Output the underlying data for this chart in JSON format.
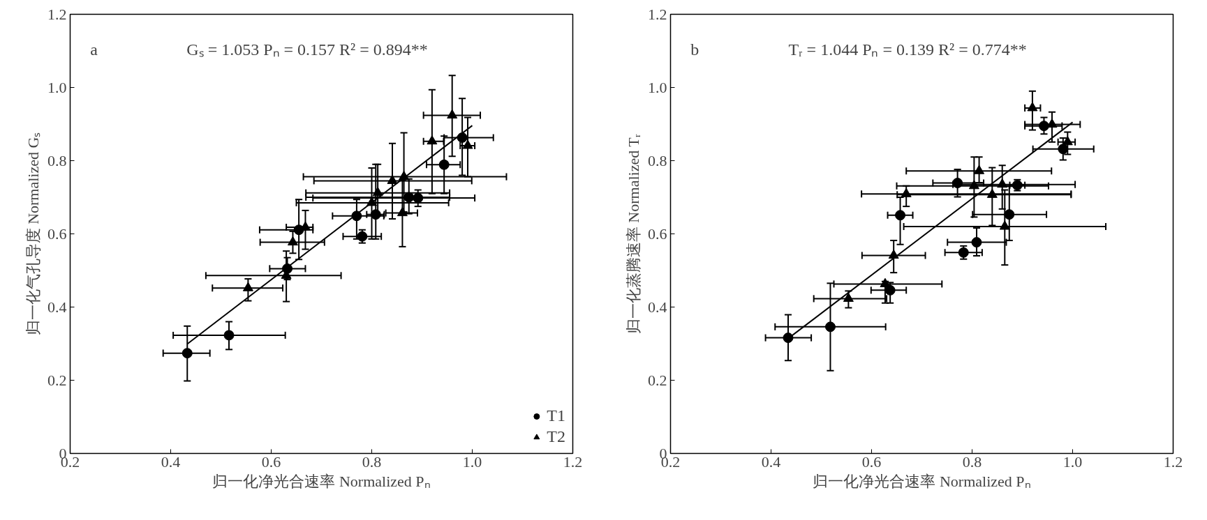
{
  "chart_data": [
    {
      "type": "scatter",
      "annotations": [
        "a",
        "Gₛ = 1.053  Pₙ = 0.157  R² = 0.894**"
      ],
      "xlabel": "归一化净光合速率 Normalized Pₙ",
      "ylabel": "归一化气孔导度 Normalized Gₛ",
      "xlim": [
        0.2,
        1.2
      ],
      "ylim": [
        0,
        1.2
      ],
      "xticks": [
        0.2,
        0.4,
        0.6,
        0.8,
        {
          "value": 1,
          "label": "1.0"
        },
        1.2
      ],
      "yticks": [
        0,
        0.2,
        0.4,
        0.6,
        0.8,
        {
          "value": 1,
          "label": "1.0"
        },
        1.2
      ],
      "grid": false,
      "legend": "bottom right",
      "series": [
        {
          "name": "T1",
          "color": "#000000",
          "marker": "circle",
          "x": [
            0.433,
            0.516,
            0.632,
            0.655,
            0.77,
            0.781,
            0.808,
            0.874,
            0.892,
            0.944,
            0.98
          ],
          "values": [
            0.274,
            0.323,
            0.505,
            0.611,
            0.649,
            0.593,
            0.653,
            0.7,
            0.698,
            0.789,
            0.863
          ],
          "xerrors": [
            [
              0.385,
              0.478
            ],
            [
              0.405,
              0.628
            ],
            [
              0.597,
              0.668
            ],
            [
              0.577,
              0.683
            ],
            [
              0.722,
              0.824
            ],
            [
              0.743,
              0.819
            ],
            [
              0.79,
              0.825
            ],
            [
              0.669,
              0.955
            ],
            [
              0.683,
              1.005
            ],
            [
              0.909,
              0.976
            ],
            [
              0.944,
              1.042
            ]
          ],
          "errors": [
            [
              0.198,
              0.348
            ],
            [
              0.284,
              0.36
            ],
            [
              0.475,
              0.535
            ],
            [
              0.53,
              0.694
            ],
            [
              0.586,
              0.694
            ],
            [
              0.575,
              0.611
            ],
            [
              0.586,
              0.79
            ],
            [
              0.655,
              0.75
            ],
            [
              0.675,
              0.72
            ],
            [
              0.71,
              0.867
            ],
            [
              0.76,
              0.97
            ]
          ]
        },
        {
          "name": "T2",
          "color": "#000000",
          "marker": "triangle",
          "x": [
            0.554,
            0.63,
            0.643,
            0.668,
            0.8,
            0.812,
            0.841,
            0.864,
            0.861,
            0.92,
            0.96,
            0.991
          ],
          "values": [
            0.452,
            0.486,
            0.577,
            0.618,
            0.685,
            0.712,
            0.745,
            0.756,
            0.657,
            0.853,
            0.924,
            0.841
          ],
          "xerrors": [
            [
              0.483,
              0.623
            ],
            [
              0.47,
              0.739
            ],
            [
              0.578,
              0.706
            ],
            [
              0.63,
              0.683
            ],
            [
              0.65,
              0.953
            ],
            [
              0.669,
              0.955
            ],
            [
              0.685,
              0.999
            ],
            [
              0.664,
              1.068
            ],
            [
              0.828,
              0.891
            ],
            [
              0.903,
              0.943
            ],
            [
              0.903,
              1.016
            ],
            [
              0.976,
              1.005
            ]
          ],
          "errors": [
            [
              0.417,
              0.477
            ],
            [
              0.415,
              0.553
            ],
            [
              0.547,
              0.607
            ],
            [
              0.558,
              0.664
            ],
            [
              0.586,
              0.78
            ],
            [
              0.65,
              0.79
            ],
            [
              0.641,
              0.847
            ],
            [
              0.66,
              0.876
            ],
            [
              0.565,
              0.747
            ],
            [
              0.71,
              0.994
            ],
            [
              0.812,
              1.033
            ],
            [
              0.756,
              0.918
            ]
          ]
        },
        {
          "type": "line",
          "color": "#000000",
          "x": [
            0.433,
            1.0
          ],
          "values": [
            0.299,
            0.896
          ]
        }
      ]
    },
    {
      "type": "scatter",
      "annotations": [
        "b",
        "Tᵣ = 1.044  Pₙ = 0.139  R² = 0.774**"
      ],
      "xlabel": "归一化净光合速率 Normalized Pₙ",
      "ylabel": "归一化蒸腾速率 Normalized Tᵣ",
      "xlim": [
        0.2,
        1.2
      ],
      "ylim": [
        0,
        1.2
      ],
      "xticks": [
        0.2,
        0.4,
        0.6,
        0.8,
        {
          "value": 1,
          "label": "1.0"
        },
        1.2
      ],
      "yticks": [
        0,
        0.2,
        0.4,
        0.6,
        0.8,
        {
          "value": 1,
          "label": "1.0"
        },
        1.2
      ],
      "grid": false,
      "series": [
        {
          "color": "#000000",
          "marker": "circle",
          "x": [
            0.434,
            0.518,
            0.637,
            0.657,
            0.783,
            0.809,
            0.771,
            0.874,
            0.89,
            0.943,
            0.981
          ],
          "values": [
            0.316,
            0.346,
            0.446,
            0.651,
            0.549,
            0.577,
            0.739,
            0.653,
            0.733,
            0.895,
            0.832
          ],
          "xerrors": [
            [
              0.389,
              0.48
            ],
            [
              0.408,
              0.628
            ],
            [
              0.599,
              0.669
            ],
            [
              0.632,
              0.682
            ],
            [
              0.746,
              0.82
            ],
            [
              0.751,
              0.868
            ],
            [
              0.722,
              0.823
            ],
            [
              0.801,
              0.948
            ],
            [
              0.875,
              0.905
            ],
            [
              0.905,
              0.979
            ],
            [
              0.921,
              1.042
            ]
          ],
          "errors": [
            [
              0.254,
              0.379
            ],
            [
              0.226,
              0.465
            ],
            [
              0.411,
              0.467
            ],
            [
              0.571,
              0.7
            ],
            [
              0.531,
              0.567
            ],
            [
              0.54,
              0.616
            ],
            [
              0.701,
              0.776
            ],
            [
              0.582,
              0.73
            ],
            [
              0.718,
              0.748
            ],
            [
              0.873,
              0.918
            ],
            [
              0.802,
              0.862
            ]
          ]
        },
        {
          "color": "#000000",
          "marker": "triangle",
          "x": [
            0.554,
            0.627,
            0.644,
            0.669,
            0.814,
            0.804,
            0.84,
            0.86,
            0.865,
            0.92,
            0.959,
            0.99
          ],
          "values": [
            0.423,
            0.463,
            0.541,
            0.709,
            0.772,
            0.731,
            0.707,
            0.735,
            0.62,
            0.944,
            0.899,
            0.851
          ],
          "xerrors": [
            [
              0.485,
              0.63
            ],
            [
              0.525,
              0.74
            ],
            [
              0.581,
              0.707
            ],
            [
              0.58,
              0.997
            ],
            [
              0.669,
              0.958
            ],
            [
              0.65,
              0.952
            ],
            [
              0.651,
              0.997
            ],
            [
              0.762,
              1.005
            ],
            [
              0.664,
              1.066
            ],
            [
              0.905,
              0.936
            ],
            [
              0.905,
              1.015
            ],
            [
              0.971,
              1.005
            ]
          ],
          "errors": [
            [
              0.398,
              0.444
            ],
            [
              0.411,
              0.47
            ],
            [
              0.494,
              0.582
            ],
            [
              0.675,
              0.731
            ],
            [
              0.74,
              0.81
            ],
            [
              0.646,
              0.81
            ],
            [
              0.623,
              0.781
            ],
            [
              0.668,
              0.787
            ],
            [
              0.515,
              0.72
            ],
            [
              0.884,
              0.99
            ],
            [
              0.851,
              0.933
            ],
            [
              0.817,
              0.878
            ]
          ]
        },
        {
          "type": "line",
          "color": "#000000",
          "x": [
            0.434,
            1.0
          ],
          "values": [
            0.314,
            0.905
          ]
        }
      ]
    }
  ]
}
